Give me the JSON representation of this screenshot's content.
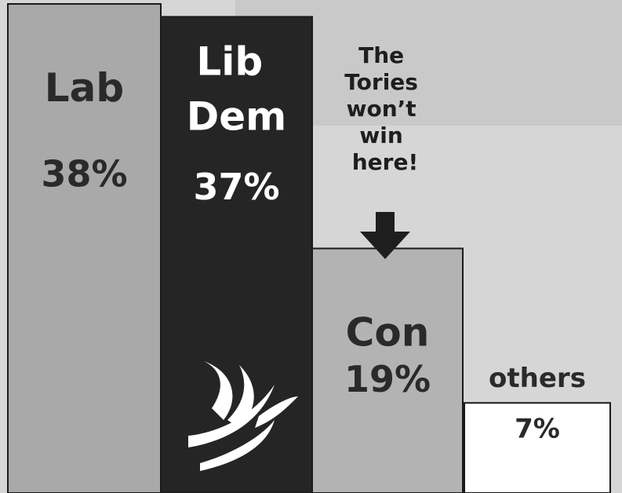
{
  "chart_data": {
    "type": "bar",
    "categories": [
      "Lab",
      "Lib Dem",
      "Con",
      "others"
    ],
    "values": [
      38,
      37,
      19,
      7
    ],
    "value_labels": [
      "38%",
      "37%",
      "19%",
      "7%"
    ],
    "colors": [
      "#a9a9a9",
      "#252525",
      "#b3b3b3",
      "#ffffff"
    ],
    "annotation": "The Tories won’t win here!"
  }
}
